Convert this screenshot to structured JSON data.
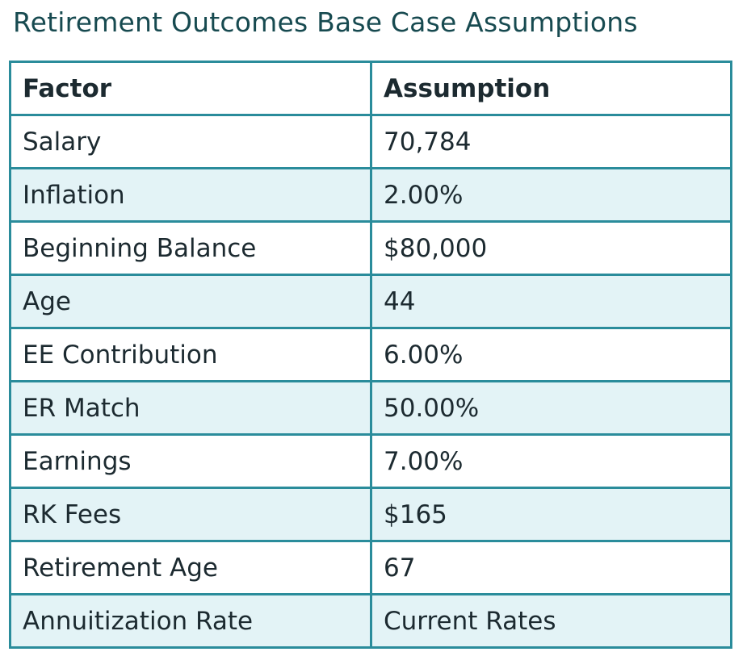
{
  "header": {
    "title": "Retirement Outcomes Base Case Assumptions"
  },
  "table": {
    "columns": [
      "Factor",
      "Assumption"
    ],
    "rows": [
      [
        "Salary",
        "70,784"
      ],
      [
        "Inflation",
        "2.00%"
      ],
      [
        "Beginning Balance",
        "$80,000"
      ],
      [
        "Age",
        "44"
      ],
      [
        "EE Contribution",
        "6.00%"
      ],
      [
        "ER Match",
        "50.00%"
      ],
      [
        "Earnings",
        "7.00%"
      ],
      [
        "RK Fees",
        "$165"
      ],
      [
        "Retirement Age",
        "67"
      ],
      [
        "Annuitization Rate",
        "Current Rates"
      ]
    ]
  }
}
